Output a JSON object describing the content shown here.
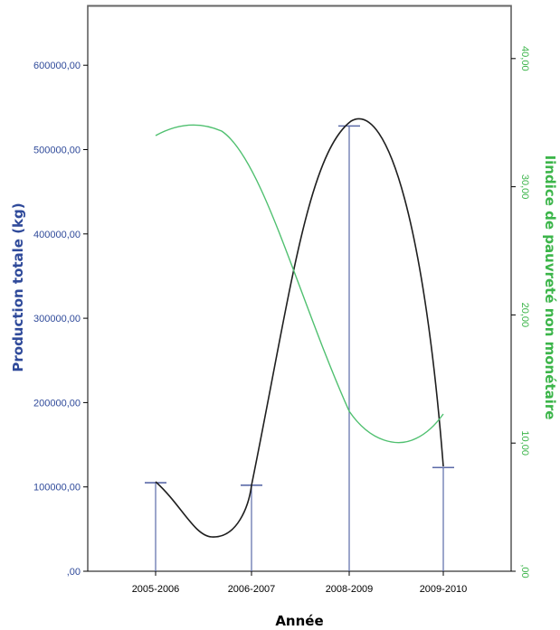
{
  "chart_data": {
    "type": "bar",
    "xlabel": "Année",
    "ylabel": "Production totale (kg)",
    "y2label": "Iindice de pauvreté non monétaire",
    "categories": [
      "2005-2006",
      "2006-2007",
      "2008-2009",
      "2009-2010"
    ],
    "ylim": [
      0,
      650000
    ],
    "y2lim": [
      0,
      44
    ],
    "yticks": [
      {
        "value": 0,
        "label": ",00"
      },
      {
        "value": 100000,
        "label": "100000,00"
      },
      {
        "value": 200000,
        "label": "200000,00"
      },
      {
        "value": 300000,
        "label": "300000,00"
      },
      {
        "value": 400000,
        "label": "400000,00"
      },
      {
        "value": 500000,
        "label": "500000,00"
      },
      {
        "value": 600000,
        "label": "600000,00"
      }
    ],
    "y2ticks": [
      {
        "value": 0,
        "label": ",00"
      },
      {
        "value": 10,
        "label": "10,00"
      },
      {
        "value": 20,
        "label": "20,00"
      },
      {
        "value": 30,
        "label": "30,00"
      },
      {
        "value": 40,
        "label": "40,00"
      }
    ],
    "series": [
      {
        "axis": "left",
        "style": "bars-with-smooth-curve",
        "values": [
          105000,
          102000,
          528000,
          123000
        ]
      },
      {
        "axis": "right",
        "style": "smooth-curve",
        "values": [
          34.7,
          33.5,
          11.0,
          12.3
        ]
      }
    ],
    "colors": {
      "production": "#1f1f1f",
      "bars": "#5b6aa8",
      "pauvrete": "#50c070",
      "left_axis": "#2f4a9a",
      "right_axis": "#3cb54a",
      "xlabel": "#000000"
    }
  }
}
